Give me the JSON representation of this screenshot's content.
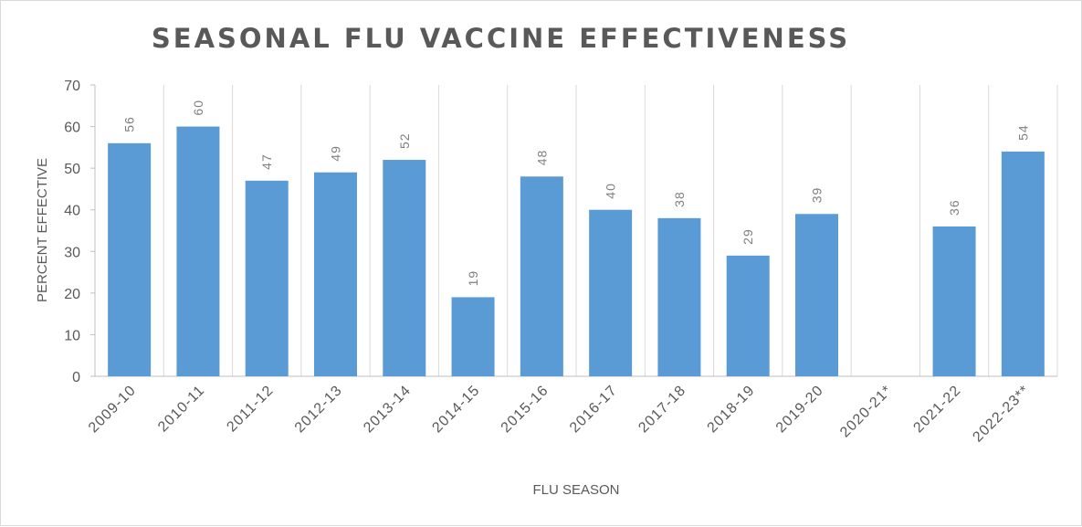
{
  "chart_data": {
    "type": "bar",
    "title": "SEASONAL FLU VACCINE EFFECTIVENESS",
    "xlabel": "FLU SEASON",
    "ylabel": "PERCENT EFFECTIVE",
    "categories": [
      "2009-10",
      "2010-11",
      "2011-12",
      "2012-13",
      "2013-14",
      "2014-15",
      "2015-16",
      "2016-17",
      "2017-18",
      "2018-19",
      "2019-20",
      "2020-21*",
      "2021-22",
      "2022-23**"
    ],
    "values": [
      56,
      60,
      47,
      49,
      52,
      19,
      48,
      40,
      38,
      29,
      39,
      null,
      36,
      54
    ],
    "ylim": [
      0,
      70
    ],
    "yticks": [
      0,
      10,
      20,
      30,
      40,
      50,
      60,
      70
    ],
    "grid": "vertical",
    "bar_color": "#5b9bd5"
  }
}
